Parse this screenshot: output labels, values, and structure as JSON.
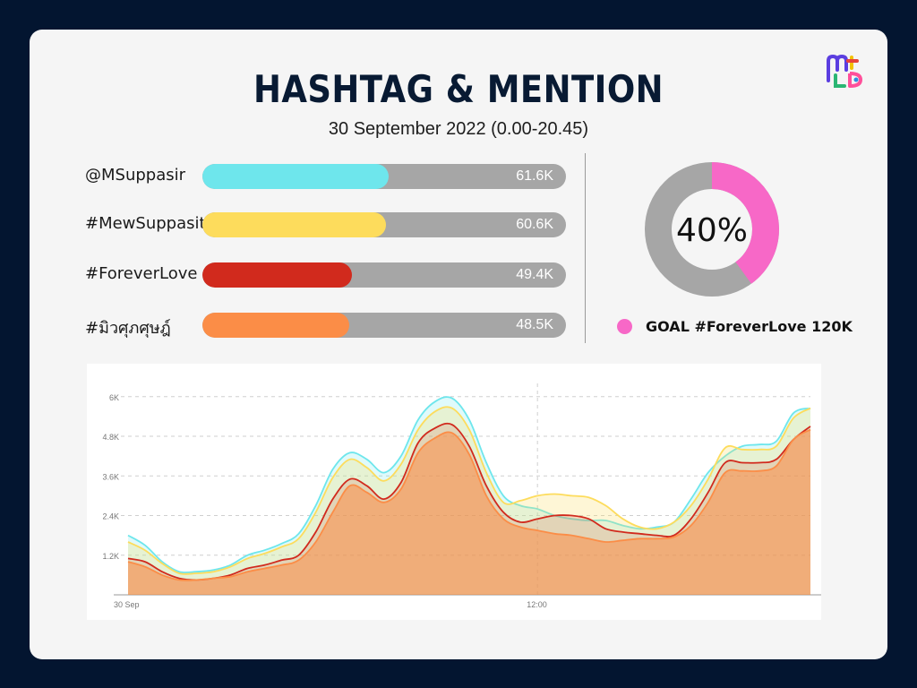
{
  "title": "HASHTAG & MENTION",
  "subtitle": "30 September 2022 (0.00-20.45)",
  "colors": {
    "background": "#031530",
    "card": "#f5f5f5",
    "track": "#a6a6a6",
    "goal": "#f768c7"
  },
  "bars": {
    "max": 120,
    "items": [
      {
        "label": "@MSuppasir",
        "value": 61.6,
        "display": "61.6K",
        "color": "#6ee6ec"
      },
      {
        "label": "#MewSuppasit",
        "value": 60.6,
        "display": "60.6K",
        "color": "#fddc5c"
      },
      {
        "label": "#ForeverLove",
        "value": 49.4,
        "display": "49.4K",
        "color": "#d12a1d"
      },
      {
        "label": "#มิวศุภศุษฎ์",
        "value": 48.5,
        "display": "48.5K",
        "color": "#fb8d47"
      }
    ]
  },
  "goal": {
    "percent": 40,
    "percent_label": "40%",
    "label": "GOAL #ForeverLove 120K",
    "color": "#f768c7",
    "track_color": "#a6a6a6"
  },
  "chart_data": {
    "type": "area",
    "title": "",
    "xlabel": "",
    "ylabel": "",
    "x_ticks": [
      {
        "label": "30 Sep",
        "index": 0
      },
      {
        "label": "12:00",
        "index": 24
      }
    ],
    "y_ticks": [
      "1.2K",
      "2.4K",
      "3.6K",
      "4.8K",
      "6K"
    ],
    "y_tick_values": [
      1200,
      2400,
      3600,
      4800,
      6000
    ],
    "ylim": [
      0,
      6400
    ],
    "grid": true,
    "series": [
      {
        "color": "#6ee6ec",
        "values": [
          1800,
          1500,
          1000,
          700,
          700,
          750,
          900,
          1200,
          1350,
          1550,
          1850,
          2700,
          3800,
          4300,
          4100,
          3700,
          4200,
          5300,
          5850,
          5950,
          5300,
          4000,
          3000,
          2700,
          2600,
          2400,
          2300,
          2250,
          2250,
          2100,
          2000,
          2050,
          2200,
          2900,
          3700,
          4200,
          4500,
          4550,
          4650,
          5500,
          5650
        ]
      },
      {
        "color": "#fddc5c",
        "values": [
          1600,
          1350,
          950,
          650,
          650,
          700,
          850,
          1100,
          1250,
          1450,
          1700,
          2500,
          3550,
          4100,
          3850,
          3450,
          3950,
          5000,
          5550,
          5650,
          5000,
          3700,
          2800,
          2850,
          3000,
          3050,
          3000,
          2950,
          2700,
          2300,
          2050,
          2000,
          2200,
          2700,
          3500,
          4450,
          4400,
          4400,
          4500,
          5350,
          5650
        ]
      },
      {
        "color": "#d12a1d",
        "values": [
          1100,
          1000,
          700,
          500,
          450,
          500,
          600,
          800,
          900,
          1050,
          1200,
          1900,
          2900,
          3500,
          3300,
          2900,
          3400,
          4600,
          5050,
          5150,
          4500,
          3300,
          2500,
          2200,
          2300,
          2400,
          2400,
          2300,
          2000,
          1900,
          1850,
          1800,
          1800,
          2300,
          3100,
          4000,
          4000,
          4000,
          4100,
          4700,
          5100
        ]
      },
      {
        "color": "#fb8d47",
        "values": [
          1000,
          850,
          600,
          450,
          450,
          500,
          550,
          700,
          800,
          900,
          1050,
          1600,
          2500,
          3300,
          3100,
          2800,
          3200,
          4300,
          4750,
          4900,
          4250,
          3000,
          2300,
          2050,
          1950,
          1850,
          1800,
          1700,
          1600,
          1650,
          1700,
          1700,
          1750,
          2100,
          2800,
          3700,
          3750,
          3750,
          3900,
          4700,
          5000
        ]
      }
    ]
  }
}
